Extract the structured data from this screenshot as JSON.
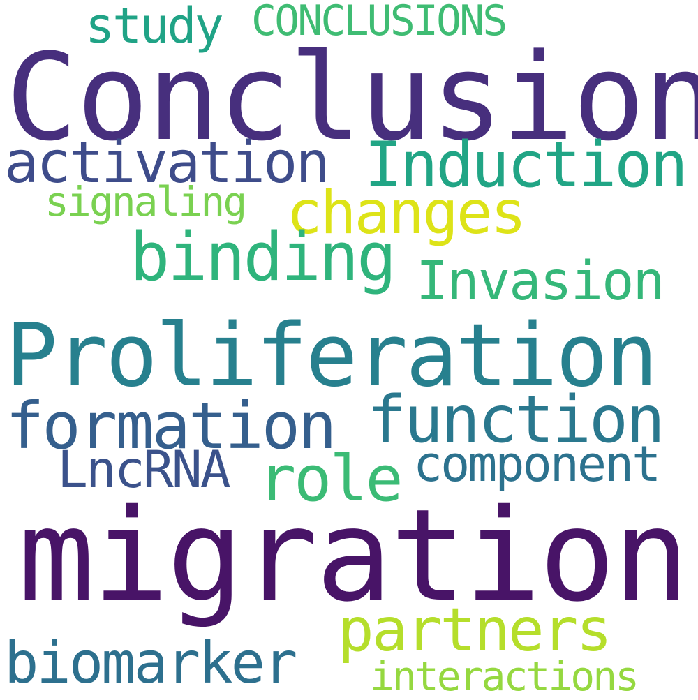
{
  "words": [
    {
      "text": "Conclusion",
      "color": "#472f7d"
    },
    {
      "text": "migration",
      "color": "#481467"
    },
    {
      "text": "Proliferation",
      "color": "#27808e"
    },
    {
      "text": "activation",
      "color": "#3e4c8a"
    },
    {
      "text": "Induction",
      "color": "#21a585"
    },
    {
      "text": "changes",
      "color": "#dde318"
    },
    {
      "text": "signaling",
      "color": "#7ad151"
    },
    {
      "text": "binding",
      "color": "#2fb47c"
    },
    {
      "text": "Invasion",
      "color": "#35b779"
    },
    {
      "text": "formation",
      "color": "#355f8d"
    },
    {
      "text": "function",
      "color": "#2a788e"
    },
    {
      "text": "LncRNA",
      "color": "#3b528b"
    },
    {
      "text": "role",
      "color": "#3bbb75"
    },
    {
      "text": "component",
      "color": "#2c728e"
    },
    {
      "text": "partners",
      "color": "#b5de2b"
    },
    {
      "text": "biomarker",
      "color": "#2d708e"
    },
    {
      "text": "interactions",
      "color": "#95d840"
    },
    {
      "text": "study",
      "color": "#20a386"
    },
    {
      "text": "CONCLUSIONS",
      "color": "#3fbc73"
    }
  ]
}
